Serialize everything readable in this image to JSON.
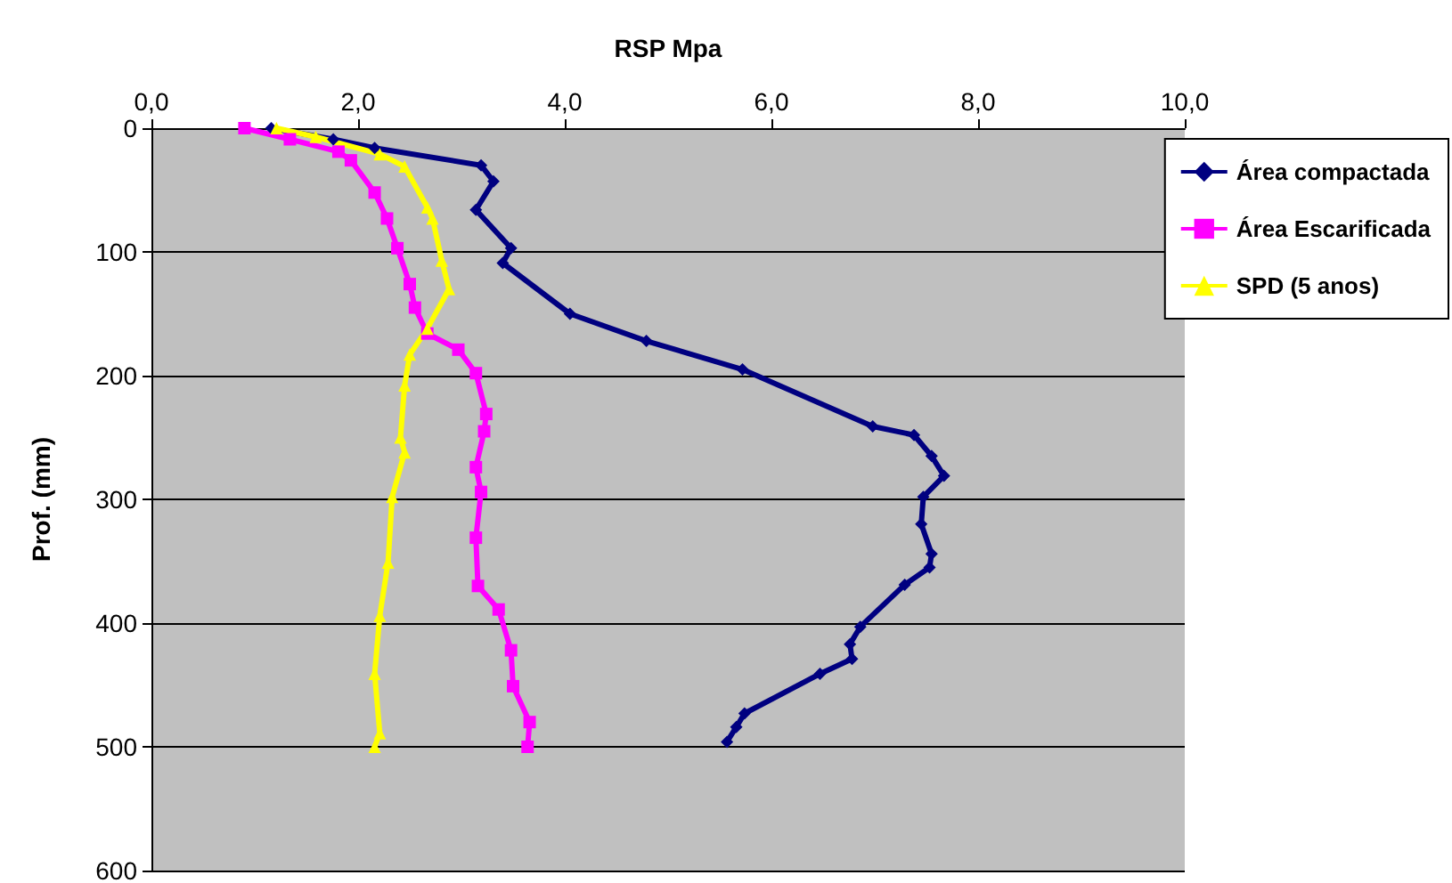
{
  "chart_data": {
    "type": "line",
    "xlabel": "RSP Mpa",
    "ylabel": "Prof. (mm)",
    "xlim": [
      0,
      10
    ],
    "xticks": [
      {
        "value": 0,
        "label": "0,0"
      },
      {
        "value": 2,
        "label": "2,0"
      },
      {
        "value": 4,
        "label": "4,0"
      },
      {
        "value": 6,
        "label": "6,0"
      },
      {
        "value": 8,
        "label": "8,0"
      },
      {
        "value": 10,
        "label": "10,0"
      }
    ],
    "ylim": [
      600,
      0
    ],
    "yticks": [
      0,
      100,
      200,
      300,
      400,
      500,
      600
    ],
    "grid": "y",
    "legend": "right",
    "series": [
      {
        "name": "Área compactada",
        "color": "#000080",
        "marker": "diamond",
        "x": [
          1.16,
          1.76,
          2.16,
          3.19,
          3.31,
          3.14,
          3.48,
          3.4,
          4.05,
          4.79,
          5.72,
          6.98,
          7.38,
          7.55,
          7.67,
          7.47,
          7.45,
          7.55,
          7.53,
          7.29,
          6.86,
          6.76,
          6.78,
          6.47,
          5.74,
          5.66,
          5.57
        ],
        "values": [
          0,
          9,
          16,
          30,
          43,
          66,
          97,
          109,
          150,
          172,
          195,
          241,
          248,
          265,
          281,
          298,
          320,
          344,
          355,
          369,
          403,
          417,
          429,
          441,
          473,
          484,
          496
        ]
      },
      {
        "name": "Área Escarificada",
        "color": "#ff00ff",
        "marker": "square",
        "x": [
          0.9,
          1.34,
          1.81,
          1.93,
          2.16,
          2.28,
          2.38,
          2.5,
          2.55,
          2.67,
          2.97,
          3.14,
          3.24,
          3.22,
          3.14,
          3.19,
          3.14,
          3.16,
          3.36,
          3.48,
          3.5,
          3.66,
          3.64
        ],
        "values": [
          0,
          9,
          19,
          26,
          52,
          73,
          97,
          126,
          145,
          166,
          179,
          198,
          231,
          245,
          274,
          294,
          331,
          370,
          389,
          422,
          451,
          480,
          500
        ]
      },
      {
        "name": "SPD (5 anos)",
        "color": "#ffff00",
        "marker": "triangle",
        "x": [
          1.21,
          1.59,
          2.21,
          2.45,
          2.67,
          2.72,
          2.81,
          2.88,
          2.67,
          2.5,
          2.45,
          2.41,
          2.45,
          2.33,
          2.29,
          2.21,
          2.16,
          2.21,
          2.16
        ],
        "values": [
          0,
          7,
          21,
          31,
          64,
          73,
          107,
          130,
          162,
          183,
          208,
          250,
          262,
          298,
          351,
          394,
          441,
          489,
          500
        ]
      }
    ]
  }
}
